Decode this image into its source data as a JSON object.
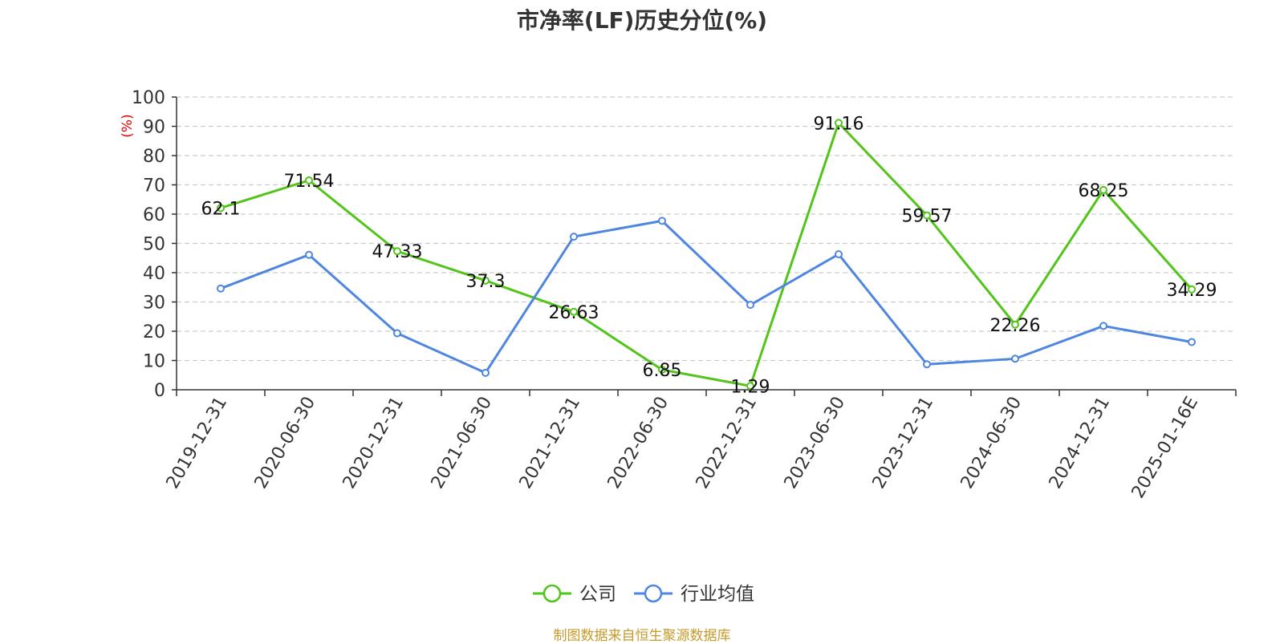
{
  "chart_data": {
    "type": "line",
    "title": "市净率(LF)历史分位(%)",
    "ylabel": "(%)",
    "xlabel": "",
    "ylim": [
      0,
      100
    ],
    "yticks": [
      0,
      10,
      20,
      30,
      40,
      50,
      60,
      70,
      80,
      90,
      100
    ],
    "grid": true,
    "legend_position": "bottom-center",
    "categories": [
      "2019-12-31",
      "2020-06-30",
      "2020-12-31",
      "2021-06-30",
      "2021-12-31",
      "2022-06-30",
      "2022-12-31",
      "2023-06-30",
      "2023-12-31",
      "2024-06-30",
      "2024-12-31",
      "2025-01-16E"
    ],
    "series": [
      {
        "name": "公司",
        "color": "#52c41a",
        "show_labels": true,
        "values": [
          62.1,
          71.54,
          47.33,
          37.3,
          26.63,
          6.85,
          1.29,
          91.16,
          59.57,
          22.26,
          68.25,
          34.29
        ],
        "labels": [
          "62.1",
          "71.54",
          "47.33",
          "37.3",
          "26.63",
          "6.85",
          "1.29",
          "91.16",
          "59.57",
          "22.26",
          "68.25",
          "34.29"
        ]
      },
      {
        "name": "行业均值",
        "color": "#4f86e0",
        "show_labels": false,
        "values": [
          34.6,
          46.1,
          19.3,
          5.8,
          52.3,
          57.7,
          29.0,
          46.3,
          8.7,
          10.6,
          21.8,
          16.3
        ]
      }
    ]
  },
  "source_note": "制图数据来自恒生聚源数据库"
}
